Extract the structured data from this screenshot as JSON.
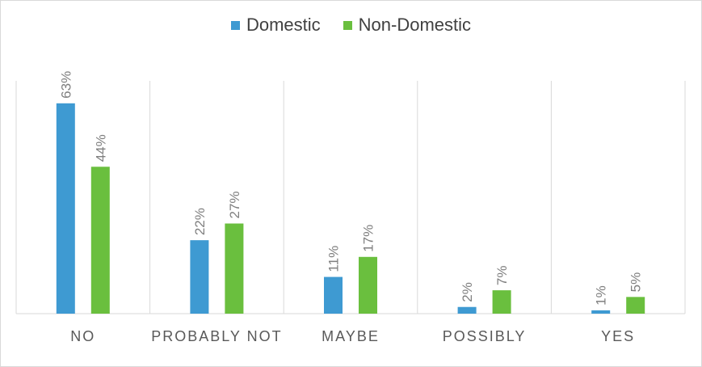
{
  "chart_data": {
    "type": "bar",
    "categories": [
      "NO",
      "PROBABLY NOT",
      "MAYBE",
      "POSSIBLY",
      "YES"
    ],
    "series": [
      {
        "name": "Domestic",
        "values": [
          63,
          22,
          11,
          2,
          1
        ],
        "labels": [
          "63%",
          "22%",
          "11%",
          "2%",
          "1%"
        ],
        "color": "#3e9ad2"
      },
      {
        "name": "Non-Domestic",
        "values": [
          44,
          27,
          17,
          7,
          5
        ],
        "labels": [
          "44%",
          "27%",
          "17%",
          "7%",
          "5%"
        ],
        "color": "#6abf3e"
      }
    ],
    "ylim": [
      0,
      70
    ],
    "legend_position": "top",
    "grid": "vertical category separators",
    "title": "",
    "xlabel": "",
    "ylabel": ""
  }
}
